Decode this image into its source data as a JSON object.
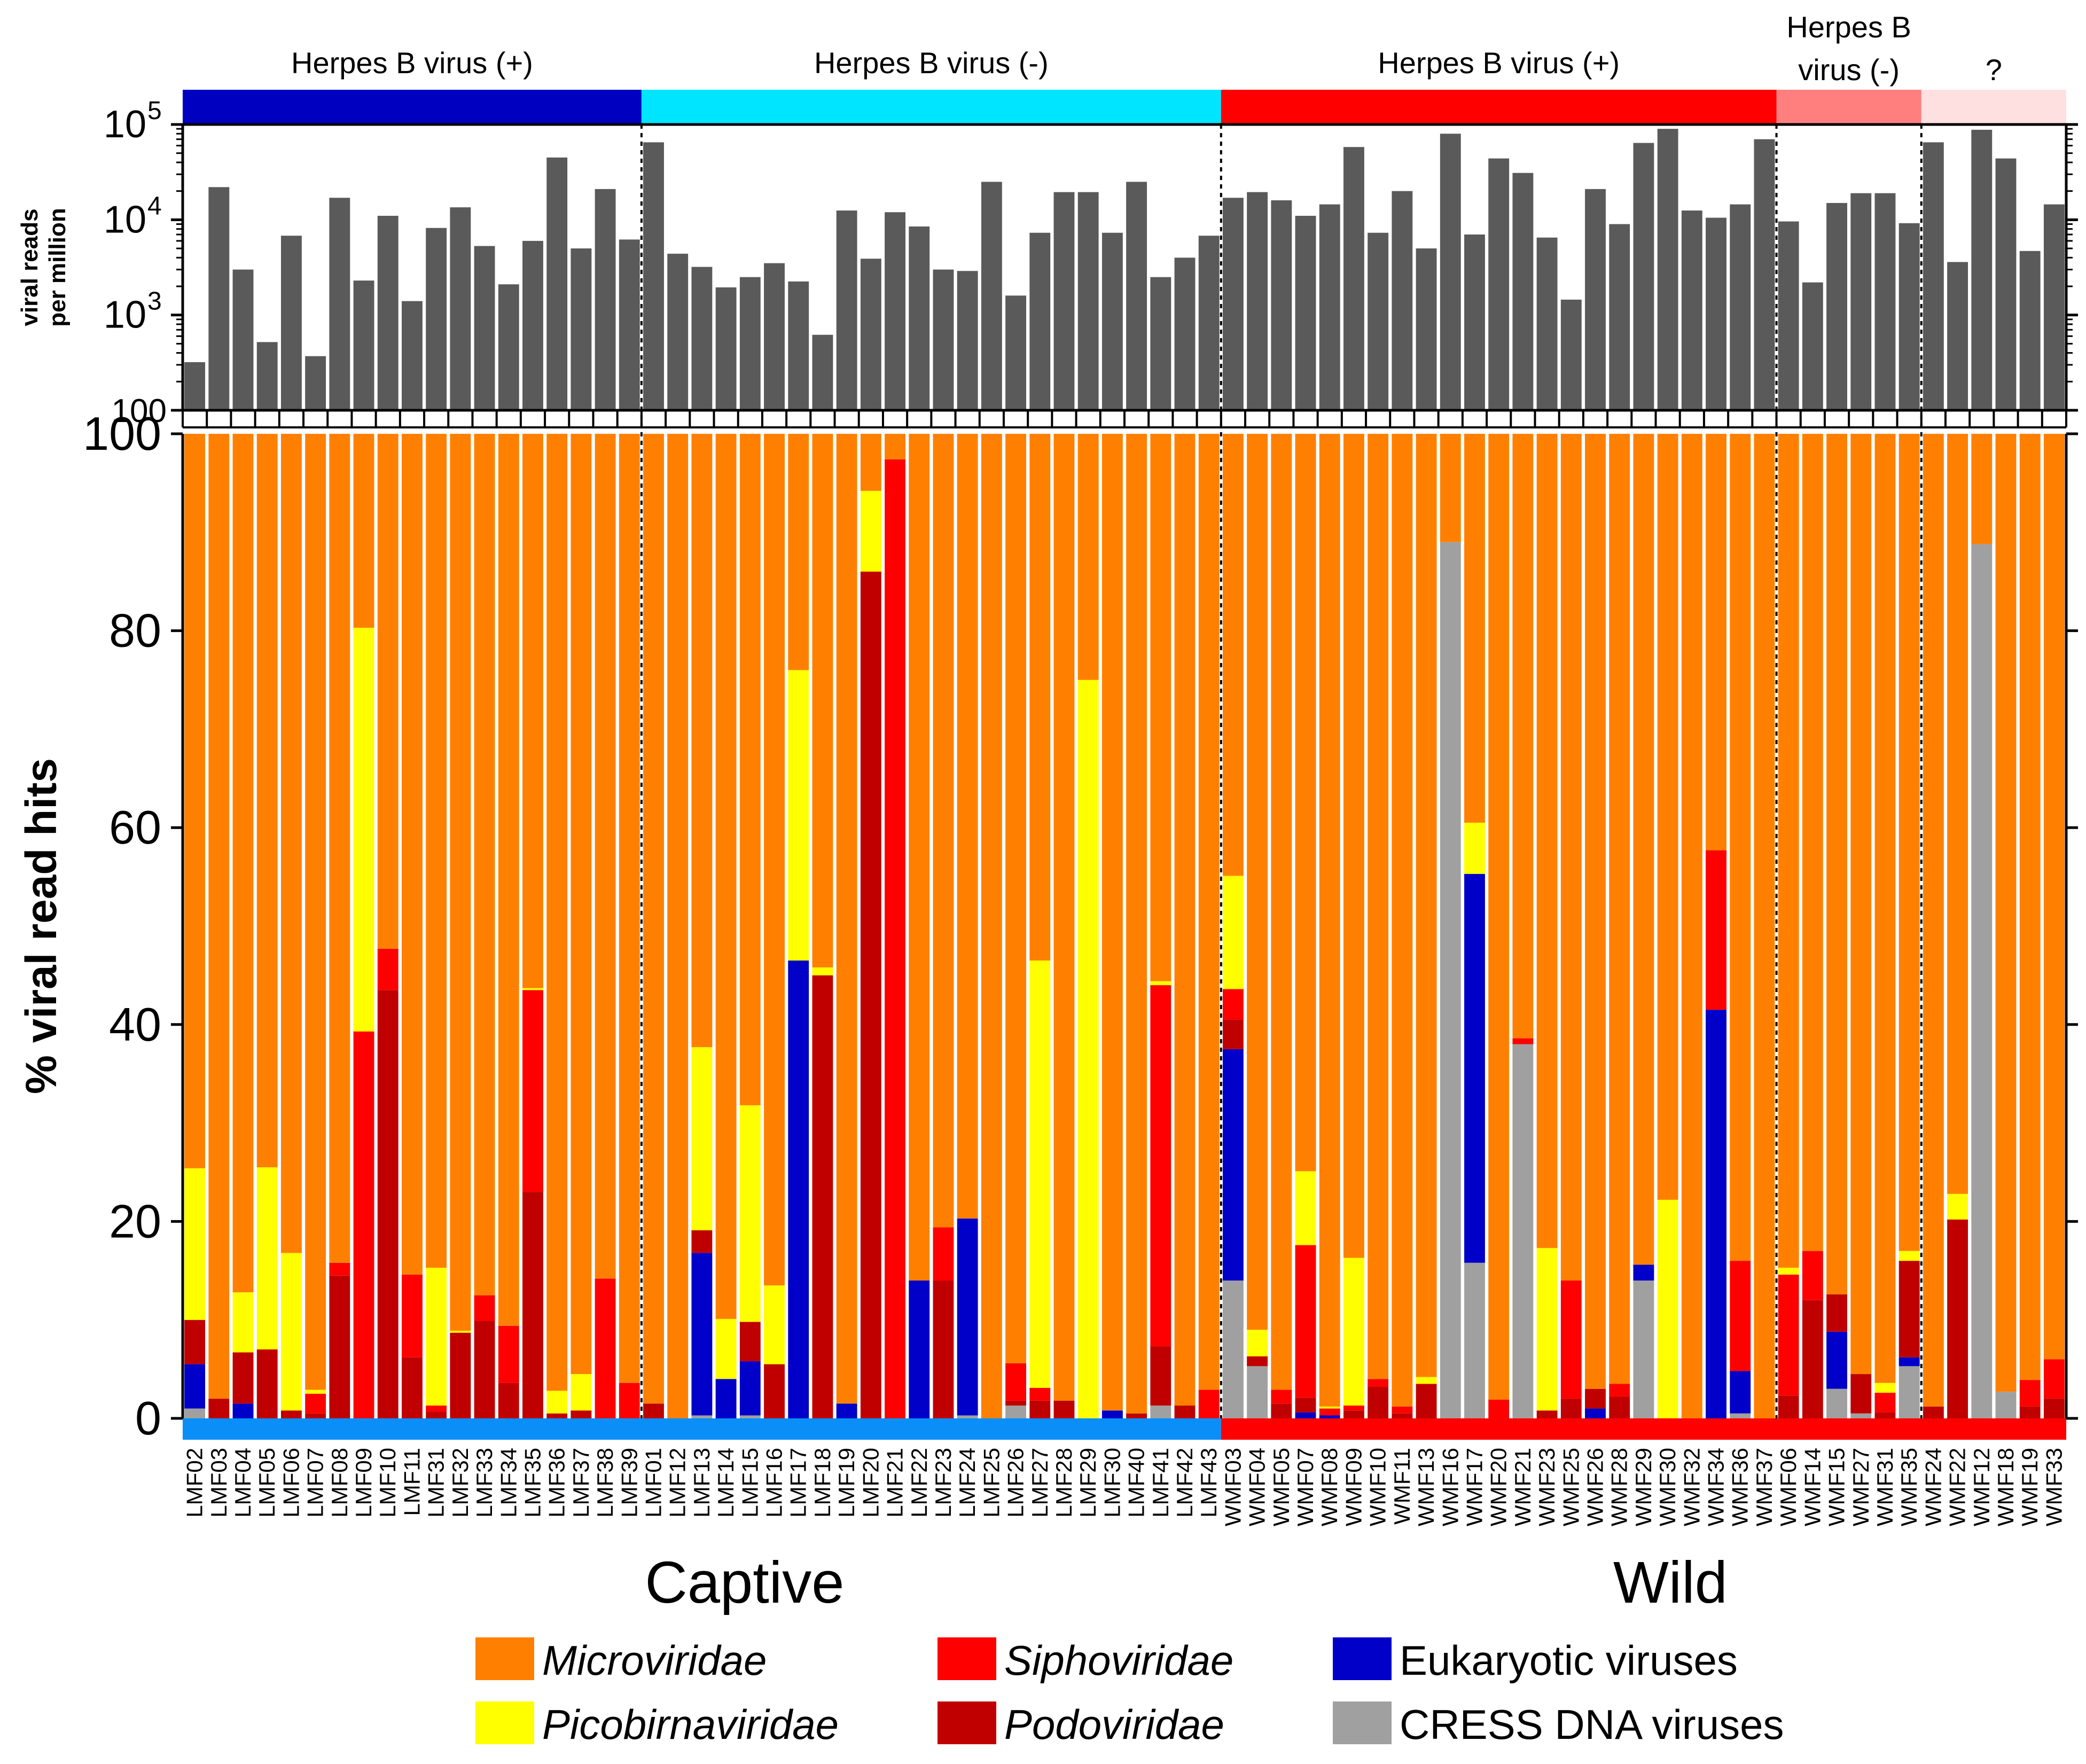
{
  "colors": {
    "microviridae": "#ff8000",
    "picobirnaviridae": "#ffff00",
    "siphoviridae": "#ff0000",
    "podoviridae": "#c00000",
    "eukaryotic": "#0000c8",
    "cress": "#a0a0a0",
    "reads_bar": "#5a5a5a",
    "captive_band": "#0a8ff8",
    "wild_band": "#ff0000",
    "group_colors": [
      "#0000c0",
      "#00e5ff",
      "#ff0000",
      "#ff7f7f",
      "#ffe0e0"
    ]
  },
  "chart_data": {
    "type": "bar",
    "samples": [
      "LMF02",
      "LMF03",
      "LMF04",
      "LMF05",
      "LMF06",
      "LMF07",
      "LMF08",
      "LMF09",
      "LMF10",
      "LMF11",
      "LMF31",
      "LMF32",
      "LMF33",
      "LMF34",
      "LMF35",
      "LMF36",
      "LMF37",
      "LMF38",
      "LMF39",
      "LMF01",
      "LMF12",
      "LMF13",
      "LMF14",
      "LMF15",
      "LMF16",
      "LMF17",
      "LMF18",
      "LMF19",
      "LMF20",
      "LMF21",
      "LMF22",
      "LMF23",
      "LMF24",
      "LMF25",
      "LMF26",
      "LMF27",
      "LMF28",
      "LMF29",
      "LMF30",
      "LMF40",
      "LMF41",
      "LMF42",
      "LMF43",
      "WMF03",
      "WMF04",
      "WMF05",
      "WMF07",
      "WMF08",
      "WMF09",
      "WMF10",
      "WMF11",
      "WMF13",
      "WMF16",
      "WMF17",
      "WMF20",
      "WMF21",
      "WMF23",
      "WMF25",
      "WMF26",
      "WMF28",
      "WMF29",
      "WMF30",
      "WMF32",
      "WMF34",
      "WMF36",
      "WMF37",
      "WMF06",
      "WMF14",
      "WMF15",
      "WMF27",
      "WMF31",
      "WMF35",
      "WMF24",
      "WMF22",
      "WMF12",
      "WMF18",
      "WMF19",
      "WMF33"
    ],
    "top_panel": {
      "ylabel": "viral reads per million",
      "scale": "log",
      "ylim": [
        100,
        100000
      ],
      "tick_labels": [
        "100",
        "10",
        "3",
        "10",
        "4",
        "10",
        "5"
      ],
      "values": [
        320,
        22000,
        3000,
        520,
        6800,
        370,
        17000,
        2300,
        11000,
        1400,
        8200,
        13500,
        5300,
        2100,
        6000,
        45000,
        5000,
        21000,
        6200,
        65000,
        4400,
        3200,
        1950,
        2500,
        3500,
        2250,
        620,
        12500,
        3900,
        12000,
        8500,
        3000,
        2900,
        25000,
        1600,
        7300,
        19500,
        19500,
        7300,
        25000,
        2500,
        4000,
        6800,
        17000,
        19500,
        16000,
        11000,
        14500,
        58000,
        7300,
        20000,
        5000,
        80000,
        7000,
        44000,
        31000,
        6500,
        1450,
        21000,
        9000,
        64000,
        90000,
        12500,
        10500,
        14500,
        70000,
        9600,
        2200,
        15000,
        19000,
        19000,
        9200,
        65000,
        3600,
        88000,
        44000,
        4700,
        14500
      ]
    },
    "main_panel": {
      "ylabel": "% viral read hits",
      "ylim": [
        0,
        100
      ],
      "yticks": [
        "0",
        "20",
        "40",
        "60",
        "80",
        "100"
      ],
      "series": [
        {
          "name": "CRESS DNA viruses",
          "color_key": "cress",
          "values": [
            1,
            0,
            0,
            0,
            0,
            0,
            0,
            0,
            0,
            0,
            0,
            0,
            0,
            0,
            0,
            0,
            0,
            0,
            0,
            0,
            0,
            0.3,
            0,
            0.3,
            0,
            0,
            0,
            0,
            0,
            0,
            0,
            0,
            0.3,
            0,
            1.3,
            0,
            0,
            0,
            0,
            0,
            1.3,
            0,
            0,
            14,
            5.3,
            0,
            0,
            0,
            0,
            0,
            0,
            0,
            89,
            15.8,
            0,
            38,
            0,
            0,
            0,
            0,
            14,
            0,
            0,
            0,
            0.5,
            0,
            0,
            0,
            3,
            0.5,
            0,
            5.3,
            0,
            0,
            88.8,
            2.7,
            0,
            0
          ]
        },
        {
          "name": "Eukaryotic viruses",
          "color_key": "eukaryotic",
          "values": [
            4.5,
            0,
            1.5,
            0,
            0,
            0,
            0,
            0,
            0,
            0,
            0,
            0,
            0,
            0,
            0,
            0,
            0,
            0,
            0,
            0,
            0,
            16.5,
            4,
            5.5,
            0,
            46.5,
            0,
            1.5,
            0,
            0,
            14,
            0,
            20,
            0,
            0,
            0,
            0,
            0,
            0.8,
            0,
            0,
            0,
            0,
            23.5,
            0,
            0,
            0.6,
            0.3,
            0,
            0,
            0,
            0,
            0,
            39.5,
            0,
            0,
            0,
            0,
            1,
            0,
            1.6,
            0,
            0,
            41.5,
            4.3,
            0,
            0,
            0,
            5.8,
            0,
            0,
            0.9,
            0,
            0,
            0,
            0,
            0,
            0
          ]
        },
        {
          "name": "Podoviridae",
          "color_key": "podoviridae",
          "values": [
            4.5,
            2,
            5.2,
            7,
            0.8,
            0.5,
            14.5,
            0,
            43.5,
            6.2,
            0.7,
            8.7,
            9.9,
            3.6,
            23,
            0.5,
            0.8,
            0,
            0,
            1.5,
            0,
            2.3,
            0,
            4,
            5.5,
            0,
            45,
            0,
            86,
            0,
            0,
            14,
            0,
            0,
            0.5,
            1.8,
            1.8,
            0,
            0,
            0.5,
            6,
            1.3,
            0,
            3,
            1,
            1.5,
            1.5,
            0,
            0.8,
            3.2,
            0.5,
            3.5,
            0,
            0,
            0,
            0,
            0.8,
            2,
            2,
            2.2,
            0,
            0,
            0,
            0,
            0,
            0,
            2.3,
            12,
            3.8,
            4,
            0.6,
            9.8,
            1.2,
            20.2,
            0,
            0,
            1.2,
            2
          ]
        },
        {
          "name": "Siphoviridae",
          "color_key": "siphoviridae",
          "values": [
            0,
            0,
            0,
            0,
            0,
            2,
            1.3,
            39.3,
            4.2,
            8.4,
            0.6,
            0,
            2.6,
            5.8,
            20.5,
            0,
            0,
            14.2,
            3.6,
            0,
            0,
            0,
            0,
            0,
            0,
            0,
            0,
            0,
            0,
            97.4,
            0,
            5.4,
            0,
            0,
            3.8,
            1.3,
            0,
            0,
            0,
            0,
            36.7,
            0,
            2.9,
            3.1,
            0,
            1.4,
            15.5,
            0.7,
            0.5,
            0.8,
            0.7,
            0,
            0,
            0,
            1.9,
            0.6,
            0,
            12,
            0,
            1.3,
            0,
            0,
            0,
            16.2,
            11.2,
            0,
            12.3,
            5,
            0,
            0,
            2,
            0,
            0,
            0,
            0,
            0,
            2.7,
            4
          ]
        },
        {
          "name": "Picobirnaviridae",
          "color_key": "picobirnaviridae",
          "values": [
            15.4,
            0,
            6.1,
            18.5,
            16,
            0.4,
            0,
            41,
            0,
            0,
            14,
            0.2,
            0,
            0,
            0.2,
            2.3,
            3.7,
            0,
            0,
            0,
            0,
            18.6,
            6.1,
            22,
            8,
            29.5,
            0.8,
            0,
            8.2,
            0,
            0,
            0,
            0,
            0,
            0,
            43.4,
            0,
            75,
            0,
            0,
            0.4,
            0,
            0,
            11.5,
            2.7,
            0,
            7.5,
            0.2,
            15,
            0,
            0,
            0.7,
            0,
            5.2,
            0,
            0,
            16.5,
            0,
            0,
            0,
            0,
            22.2,
            0,
            0,
            0,
            0,
            0.7,
            0,
            0,
            0,
            1,
            1,
            0,
            2.6,
            0,
            0,
            0,
            0
          ]
        }
      ],
      "microviridae_remainder": "100 minus sum of other families"
    },
    "group_labels": [
      "Herpes B virus (+)",
      "Herpes B virus (-)",
      "Herpes B virus (+)",
      "Herpes B",
      "virus (-)",
      "?"
    ],
    "group_sizes": [
      19,
      24,
      23,
      6,
      6
    ],
    "cohorts": [
      {
        "name": "Captive",
        "count": 43
      },
      {
        "name": "Wild",
        "count": 35
      }
    ],
    "legend": [
      {
        "name": "Microviridae",
        "italic": true,
        "color_key": "microviridae"
      },
      {
        "name": "Siphoviridae",
        "italic": true,
        "color_key": "siphoviridae"
      },
      {
        "name": "Eukaryotic viruses",
        "italic": false,
        "color_key": "eukaryotic"
      },
      {
        "name": "Picobirnaviridae",
        "italic": true,
        "color_key": "picobirnaviridae"
      },
      {
        "name": "Podoviridae",
        "italic": true,
        "color_key": "podoviridae"
      },
      {
        "name": "CRESS DNA viruses",
        "italic": false,
        "color_key": "cress"
      }
    ]
  }
}
